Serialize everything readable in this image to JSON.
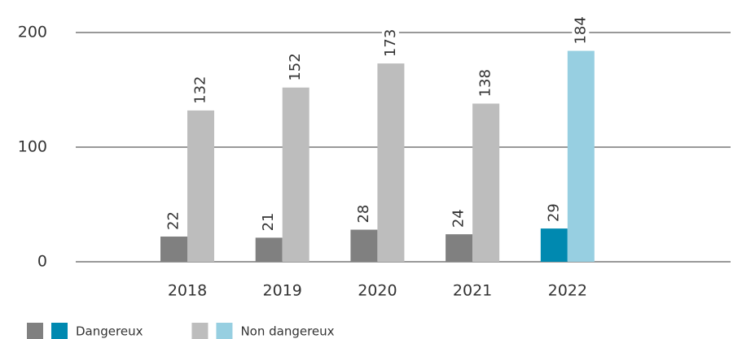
{
  "chart_data": {
    "type": "bar",
    "categories": [
      "2018",
      "2019",
      "2020",
      "2021",
      "2022"
    ],
    "series": [
      {
        "name": "Dangereux",
        "colors": [
          "#808080",
          "#808080",
          "#808080",
          "#808080",
          "#0089b0"
        ],
        "values": [
          22,
          21,
          28,
          24,
          29
        ]
      },
      {
        "name": "Non dangereux",
        "colors": [
          "#bdbdbd",
          "#bdbdbd",
          "#bdbdbd",
          "#bdbdbd",
          "#97cfe1"
        ],
        "values": [
          132,
          152,
          173,
          138,
          184
        ]
      }
    ],
    "ylim": [
      0,
      200
    ],
    "yticks": [
      0,
      100,
      200
    ],
    "grid": true,
    "legend": "bottom"
  }
}
